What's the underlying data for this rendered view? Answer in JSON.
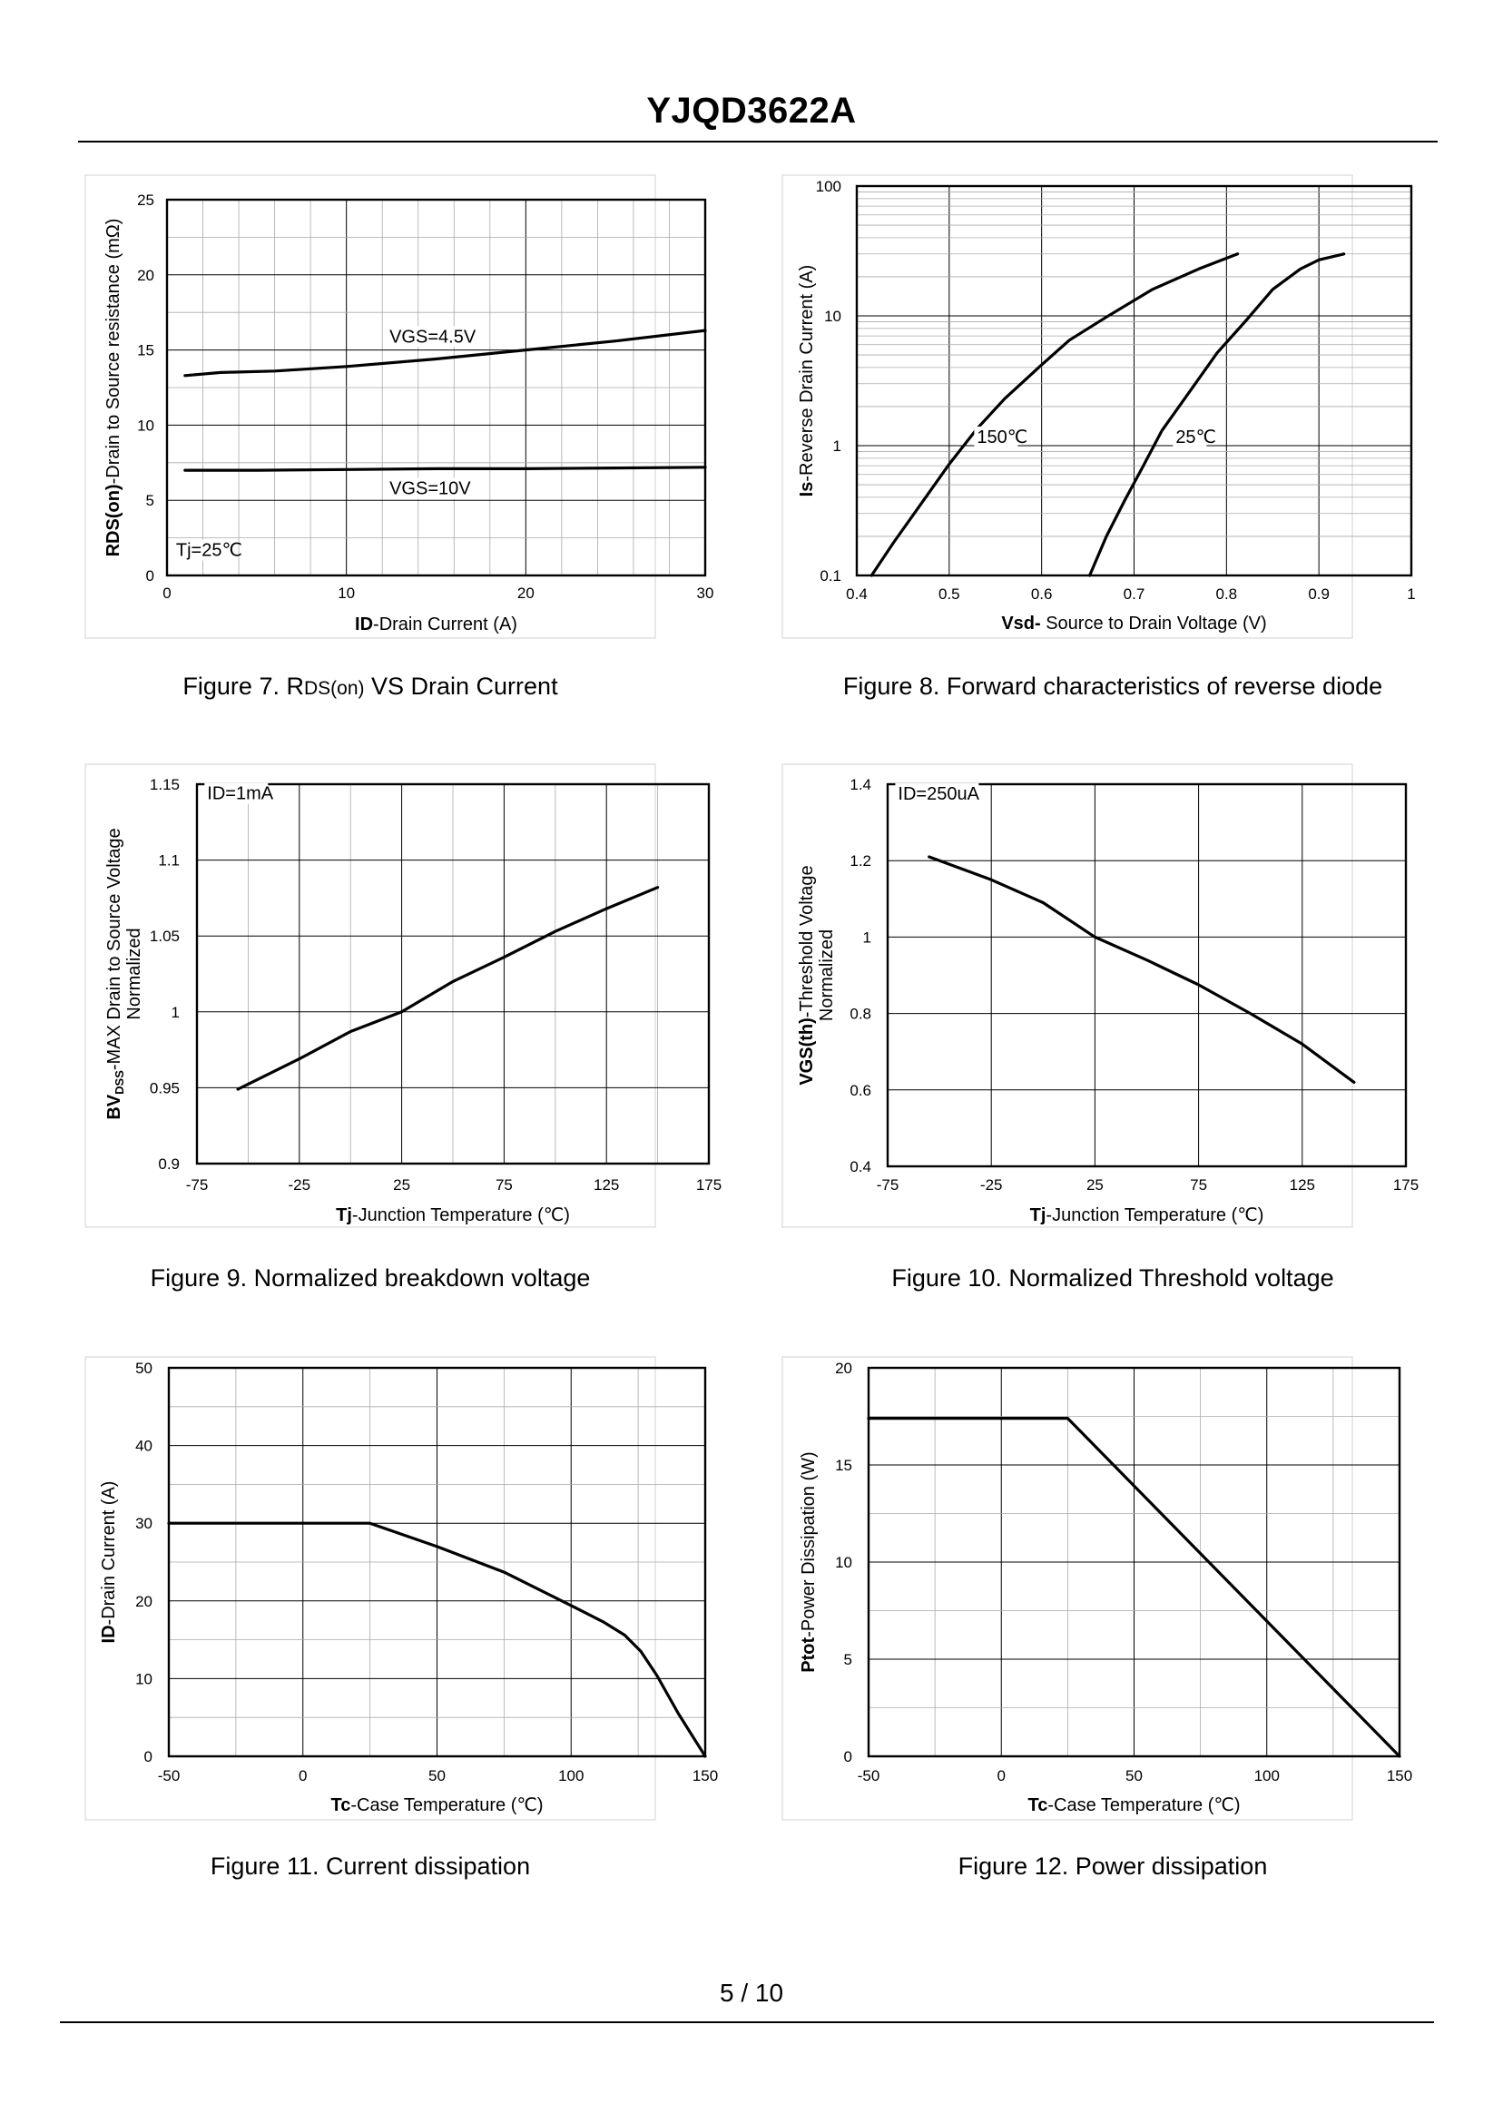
{
  "header": {
    "title": "YJQD3622A"
  },
  "footer": {
    "page": "5 / 10"
  },
  "charts": {
    "fig7": {
      "caption_prefix": "Figure 7.  R",
      "caption_sub": "DS(on)",
      "caption_suffix": " VS Drain Current"
    },
    "fig8": {
      "caption": "Figure 8.  Forward characteristics of reverse diode"
    },
    "fig9": {
      "caption": "Figure 9.  Normalized breakdown voltage"
    },
    "fig10": {
      "caption": "Figure 10.  Normalized Threshold voltage"
    },
    "fig11": {
      "caption": "Figure 11.  Current dissipation"
    },
    "fig12": {
      "caption": "Figure 12.  Power dissipation"
    }
  },
  "chart_data": [
    {
      "id": "fig7",
      "type": "line",
      "title": "Figure 7.  RDS(on) VS Drain Current",
      "xlabel_bold": "ID",
      "xlabel_rest": "-Drain Current (A)",
      "ylabel_bold": "RDS(on)",
      "ylabel_rest": "-Drain to Source resistance (mΩ)",
      "x_ticks": [
        "0",
        "10",
        "20",
        "30"
      ],
      "y_ticks": [
        "0",
        "5",
        "10",
        "15",
        "20",
        "25"
      ],
      "xlim": [
        0,
        30
      ],
      "ylim": [
        0,
        25
      ],
      "x_major": 10,
      "x_minor": 2,
      "y_major": 5,
      "y_minor": 2.5,
      "yscale": "linear",
      "annotations": [
        {
          "text": "Tj=25℃",
          "x": 0.5,
          "y": 1.3
        },
        {
          "text": "VGS=4.5V",
          "x": 12.4,
          "y": 15.5
        },
        {
          "text": "VGS=10V",
          "x": 12.4,
          "y": 5.4
        }
      ],
      "series": [
        {
          "name": "VGS=4.5V",
          "x": [
            1,
            3,
            6,
            10,
            15,
            20,
            25,
            30
          ],
          "y": [
            13.3,
            13.5,
            13.6,
            13.9,
            14.4,
            15.0,
            15.6,
            16.3
          ]
        },
        {
          "name": "VGS=10V",
          "x": [
            1,
            5,
            10,
            15,
            20,
            25,
            30
          ],
          "y": [
            7.0,
            7.0,
            7.05,
            7.1,
            7.1,
            7.15,
            7.2
          ]
        }
      ]
    },
    {
      "id": "fig8",
      "type": "line",
      "title": "Figure 8.  Forward characteristics of reverse diode",
      "xlabel_bold": "Vsd-",
      "xlabel_rest": " Source to Drain Voltage (V)",
      "ylabel_bold": "Is",
      "ylabel_rest": "-Reverse  Drain Current (A)",
      "x_ticks": [
        "0.4",
        "0.5",
        "0.6",
        "0.7",
        "0.8",
        "0.9",
        "1"
      ],
      "y_ticks": [
        "0.1",
        "1",
        "10",
        "100"
      ],
      "xlim": [
        0.4,
        1.0
      ],
      "ylim": [
        0.1,
        100
      ],
      "yscale": "log",
      "annotations": [
        {
          "text": "150℃",
          "x": 0.53,
          "y": 1.05
        },
        {
          "text": "25℃",
          "x": 0.745,
          "y": 1.05
        }
      ],
      "series": [
        {
          "name": "150℃",
          "x": [
            0.416,
            0.44,
            0.47,
            0.5,
            0.53,
            0.56,
            0.6,
            0.63,
            0.67,
            0.72,
            0.77,
            0.812
          ],
          "y": [
            0.1,
            0.18,
            0.36,
            0.72,
            1.35,
            2.3,
            4.2,
            6.5,
            9.8,
            16,
            23,
            30
          ]
        },
        {
          "name": "25℃",
          "x": [
            0.652,
            0.67,
            0.69,
            0.71,
            0.73,
            0.76,
            0.79,
            0.82,
            0.85,
            0.88,
            0.9,
            0.927
          ],
          "y": [
            0.1,
            0.2,
            0.38,
            0.7,
            1.3,
            2.6,
            5.2,
            9,
            16,
            23,
            27,
            30
          ]
        }
      ]
    },
    {
      "id": "fig9",
      "type": "line",
      "title": "Figure 9.  Normalized breakdown voltage",
      "xlabel_bold": "Tj",
      "xlabel_rest": "-Junction  Temperature (℃)",
      "ylabel_bold": "BV",
      "ylabel_sub": "DSS",
      "ylabel_rest": "-MAX Drain to Source Voltage",
      "ylabel_line2": "Normalized",
      "x_ticks": [
        "-75",
        "-25",
        "25",
        "75",
        "125",
        "175"
      ],
      "y_ticks": [
        "0.9",
        "0.95",
        "1",
        "1.05",
        "1.1",
        "1.15"
      ],
      "xlim": [
        -75,
        175
      ],
      "ylim": [
        0.9,
        1.15
      ],
      "x_major": 50,
      "x_minor": 25,
      "y_major": 0.05,
      "y_minor": 0.05,
      "yscale": "linear",
      "annotations": [
        {
          "text": "ID=1mA",
          "x": -70,
          "y": 1.14
        }
      ],
      "series": [
        {
          "name": "BVDSS",
          "x": [
            -55,
            -25,
            0,
            25,
            50,
            75,
            100,
            125,
            150
          ],
          "y": [
            0.949,
            0.969,
            0.987,
            1.0,
            1.02,
            1.036,
            1.053,
            1.068,
            1.082
          ]
        }
      ]
    },
    {
      "id": "fig10",
      "type": "line",
      "title": "Figure 10.  Normalized Threshold voltage",
      "xlabel_bold": "Tj",
      "xlabel_rest": "-Junction  Temperature (℃)",
      "ylabel_bold": "VGS(th)",
      "ylabel_rest": "-Threshold  Voltage",
      "ylabel_line2": "Normalized",
      "x_ticks": [
        "-75",
        "-25",
        "25",
        "75",
        "125",
        "175"
      ],
      "y_ticks": [
        "0.4",
        "0.6",
        "0.8",
        "1",
        "1.2",
        "1.4"
      ],
      "xlim": [
        -75,
        175
      ],
      "ylim": [
        0.4,
        1.4
      ],
      "x_major": 50,
      "x_minor": 50,
      "y_major": 0.2,
      "y_minor": 0.2,
      "yscale": "linear",
      "annotations": [
        {
          "text": "ID=250uA",
          "x": -70,
          "y": 1.36
        }
      ],
      "series": [
        {
          "name": "VGS(th)",
          "x": [
            -55,
            -25,
            0,
            25,
            50,
            75,
            100,
            125,
            150
          ],
          "y": [
            1.21,
            1.15,
            1.09,
            1.0,
            0.94,
            0.875,
            0.8,
            0.72,
            0.62
          ]
        }
      ]
    },
    {
      "id": "fig11",
      "type": "line",
      "title": "Figure 11.  Current dissipation",
      "xlabel_bold": "Tc",
      "xlabel_rest": "-Case Temperature (℃)",
      "ylabel_bold": "ID",
      "ylabel_rest": "-Drain Current (A)",
      "x_ticks": [
        "-50",
        "0",
        "50",
        "100",
        "150"
      ],
      "y_ticks": [
        "0",
        "10",
        "20",
        "30",
        "40",
        "50"
      ],
      "xlim": [
        -50,
        150
      ],
      "ylim": [
        0,
        50
      ],
      "x_major": 50,
      "x_minor": 25,
      "y_major": 10,
      "y_minor": 5,
      "yscale": "linear",
      "annotations": [],
      "series": [
        {
          "name": "ID",
          "x": [
            -50,
            25,
            50,
            75,
            100,
            112,
            120,
            126,
            132,
            140,
            150
          ],
          "y": [
            30,
            30,
            27,
            23.7,
            19.4,
            17.3,
            15.6,
            13.5,
            10.4,
            5.5,
            0
          ]
        }
      ]
    },
    {
      "id": "fig12",
      "type": "line",
      "title": "Figure 12.  Power dissipation",
      "xlabel_bold": "Tc",
      "xlabel_rest": "-Case Temperature (℃)",
      "ylabel_bold": "Ptot",
      "ylabel_rest": "-Power Dissipation (W)",
      "x_ticks": [
        "-50",
        "0",
        "50",
        "100",
        "150"
      ],
      "y_ticks": [
        "0",
        "5",
        "10",
        "15",
        "20"
      ],
      "xlim": [
        -50,
        150
      ],
      "ylim": [
        0,
        20
      ],
      "x_major": 50,
      "x_minor": 25,
      "y_major": 5,
      "y_minor": 2.5,
      "yscale": "linear",
      "annotations": [],
      "series": [
        {
          "name": "Ptot",
          "x": [
            -50,
            25,
            150
          ],
          "y": [
            17.4,
            17.4,
            0
          ]
        }
      ]
    }
  ]
}
